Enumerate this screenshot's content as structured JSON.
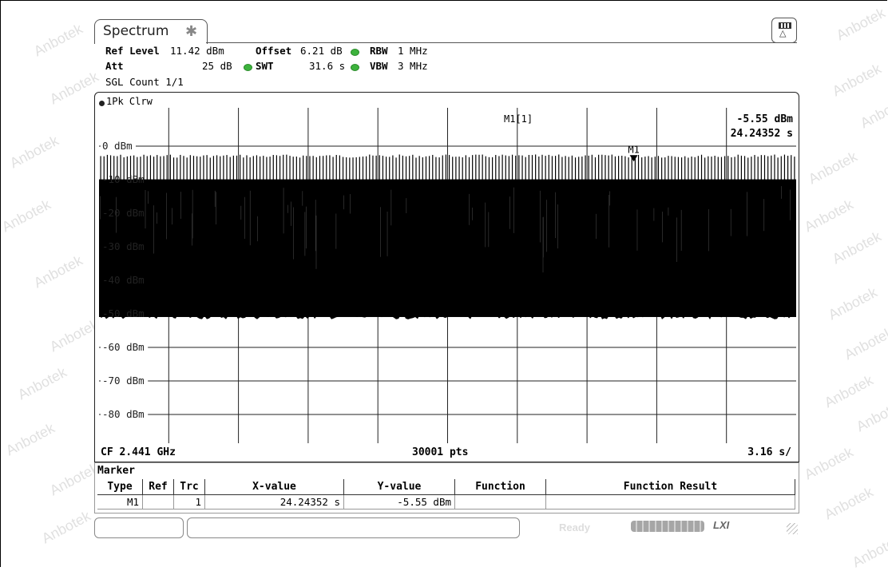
{
  "watermark": "Anbotek",
  "tab": {
    "title": "Spectrum",
    "pin_icon": "pin-icon"
  },
  "layout_button": {
    "icon": "layout-toggle-icon"
  },
  "params": {
    "ref_level_label": "Ref Level",
    "ref_level_value": "11.42 dBm",
    "offset_label": "Offset",
    "offset_value": "6.21 dB",
    "rbw_label": "RBW",
    "rbw_value": "1 MHz",
    "att_label": "Att",
    "att_value": "25 dB",
    "swt_label": "SWT",
    "swt_value": "31.6 s",
    "vbw_label": "VBW",
    "vbw_value": "3 MHz",
    "sgl_count": "SGL Count 1/1",
    "indicator_color": "#3db33d"
  },
  "trace": {
    "label": "1Pk Clrw"
  },
  "chart_data": {
    "type": "line",
    "title": "",
    "xlabel": "",
    "ylabel": "",
    "y_tick_labels": [
      "0 dBm",
      "-10 dBm",
      "-20 dBm",
      "-30 dBm",
      "-40 dBm",
      "-50 dBm",
      "-60 dBm",
      "-70 dBm",
      "-80 dBm"
    ],
    "ylim": [
      -88.58,
      11.42
    ],
    "x_divisions": 10,
    "grid": true,
    "series": [
      {
        "trace_form": "dense pulse train (zero-span sweep)",
        "pulse_peak_dbm": -2.5,
        "pulse_upper_envelope_dbm": -10,
        "noise_floor_dbm": -50,
        "pulse_count": 210
      }
    ],
    "marker": {
      "name": "M1",
      "readout_label": "M1[1]",
      "value_level": "-5.55 dBm",
      "value_time": "24.24352 s",
      "x_position_fraction": 0.767,
      "y_dbm": -5.55
    }
  },
  "footer": {
    "center_freq": "CF 2.441 GHz",
    "points": "30001 pts",
    "sweep": "3.16 s/"
  },
  "marker_table": {
    "title": "Marker",
    "headers": [
      "Type",
      "Ref",
      "Trc",
      "X-value",
      "Y-value",
      "Function",
      "Function Result"
    ],
    "rows": [
      {
        "type": "M1",
        "ref": "",
        "trc": "1",
        "x_value": "24.24352 s",
        "y_value": "-5.55 dBm",
        "function": "",
        "function_result": ""
      }
    ]
  },
  "status_bar": {
    "ready": "Ready",
    "progress_fraction": 1.0,
    "lxi": "LXI"
  }
}
